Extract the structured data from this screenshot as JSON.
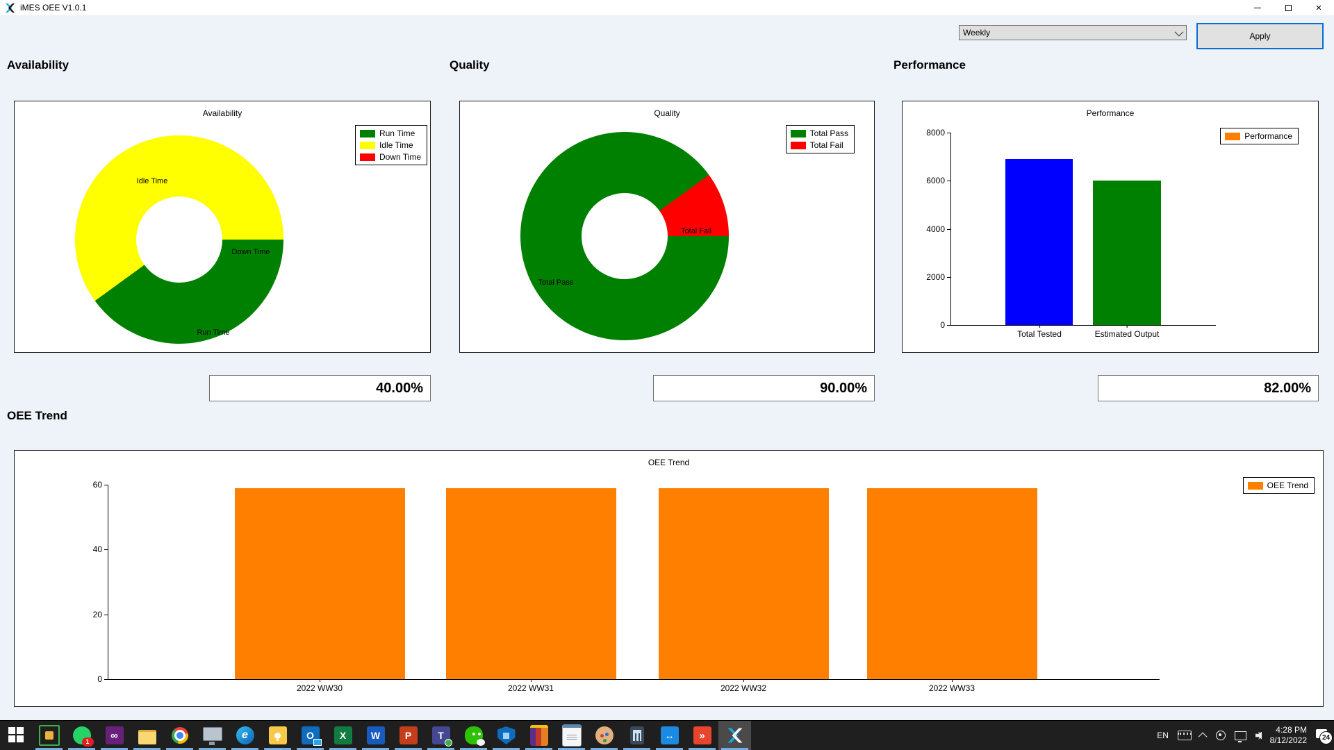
{
  "window": {
    "title": "iMES OEE V1.0.1"
  },
  "toolbar": {
    "period_value": "Weekly",
    "apply_label": "Apply"
  },
  "sections": {
    "availability": "Availability",
    "quality": "Quality",
    "performance": "Performance",
    "oee_trend": "OEE Trend"
  },
  "metrics": {
    "availability": "40.00%",
    "quality": "90.00%",
    "performance": "82.00%"
  },
  "chart_data": [
    {
      "type": "pie",
      "title": "Availability",
      "donut_hole_ratio": 0.41,
      "units": "percent",
      "legend_position": "top-right",
      "slices": [
        {
          "label": "Run Time",
          "value": 40,
          "color": "#008000"
        },
        {
          "label": "Idle Time",
          "value": 60,
          "color": "#ffff00"
        },
        {
          "label": "Down Time",
          "value": 0,
          "color": "#ff0000"
        }
      ]
    },
    {
      "type": "pie",
      "title": "Quality",
      "donut_hole_ratio": 0.41,
      "units": "percent",
      "legend_position": "top-right",
      "slices": [
        {
          "label": "Total Pass",
          "value": 90,
          "color": "#008000"
        },
        {
          "label": "Total Fail",
          "value": 10,
          "color": "#ff0000"
        }
      ]
    },
    {
      "type": "bar",
      "title": "Performance",
      "categories": [
        "Total Tested",
        "Estimated Output"
      ],
      "values": [
        6000,
        6900
      ],
      "bar_colors": [
        "#008000",
        "#0000ff"
      ],
      "ylim": [
        0,
        8000
      ],
      "yticks": [
        "8000",
        "6000",
        "4000",
        "2000",
        "0"
      ],
      "grid": false,
      "legend_position": "top-right",
      "legend": [
        {
          "label": "Performance",
          "color": "#ff8000"
        }
      ]
    },
    {
      "type": "bar",
      "title": "OEE Trend",
      "categories": [
        "2022 WW30",
        "2022 WW31",
        "2022 WW32",
        "2022 WW33"
      ],
      "values": [
        59,
        59,
        59,
        59
      ],
      "bar_colors": [
        "#ff8000",
        "#ff8000",
        "#ff8000",
        "#ff8000"
      ],
      "ylim": [
        0,
        60
      ],
      "yticks": [
        "60",
        "40",
        "20",
        "0"
      ],
      "grid": false,
      "legend_position": "top-right",
      "legend": [
        {
          "label": "OEE Trend",
          "color": "#ff8000"
        }
      ]
    }
  ],
  "taskbar": {
    "icons": [
      {
        "name": "start"
      },
      {
        "name": "capture-tool"
      },
      {
        "name": "whatsapp",
        "badge": "1"
      },
      {
        "name": "visual-studio",
        "glyph": "∞"
      },
      {
        "name": "file-explorer"
      },
      {
        "name": "chrome"
      },
      {
        "name": "remote-desktop"
      },
      {
        "name": "edge",
        "glyph": "e"
      },
      {
        "name": "sticky-notes"
      },
      {
        "name": "outlook",
        "glyph": "O"
      },
      {
        "name": "excel",
        "glyph": "X"
      },
      {
        "name": "word",
        "glyph": "W"
      },
      {
        "name": "powerpoint",
        "glyph": "P"
      },
      {
        "name": "teams",
        "glyph": "T"
      },
      {
        "name": "wechat"
      },
      {
        "name": "windows-security"
      },
      {
        "name": "winrar"
      },
      {
        "name": "notepad"
      },
      {
        "name": "paint"
      },
      {
        "name": "calculator"
      },
      {
        "name": "teamviewer",
        "glyph": "↔"
      },
      {
        "name": "quicker",
        "glyph": "»"
      },
      {
        "name": "imes-oee",
        "active": true
      }
    ],
    "tray": {
      "lang": "EN",
      "time": "4:28 PM",
      "date": "8/12/2022",
      "notification_count": "24"
    }
  }
}
